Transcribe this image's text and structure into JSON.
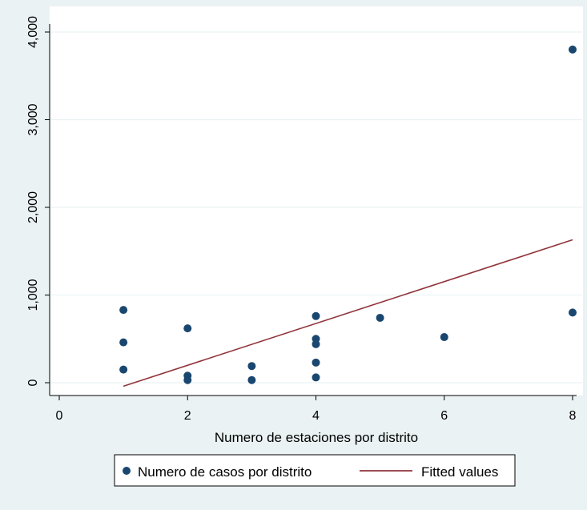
{
  "chart_data": {
    "type": "scatter",
    "xlabel": "Numero de estaciones por distrito",
    "ylabel": "",
    "xlim": [
      0,
      8
    ],
    "ylim": [
      0,
      4000
    ],
    "x_ticks": [
      0,
      2,
      4,
      6,
      8
    ],
    "x_tick_labels": [
      "0",
      "2",
      "4",
      "6",
      "8"
    ],
    "y_ticks": [
      0,
      1000,
      2000,
      3000,
      4000
    ],
    "y_tick_labels": [
      "0",
      "1,000",
      "2,000",
      "3,000",
      "4,000"
    ],
    "grid": true,
    "legend_position": "bottom",
    "series": [
      {
        "name": "Numero de casos por distrito",
        "kind": "scatter",
        "color": "#1a476f",
        "points": [
          {
            "x": 1,
            "y": 830
          },
          {
            "x": 1,
            "y": 460
          },
          {
            "x": 1,
            "y": 150
          },
          {
            "x": 2,
            "y": 620
          },
          {
            "x": 2,
            "y": 80
          },
          {
            "x": 2,
            "y": 30
          },
          {
            "x": 3,
            "y": 190
          },
          {
            "x": 3,
            "y": 30
          },
          {
            "x": 4,
            "y": 760
          },
          {
            "x": 4,
            "y": 500
          },
          {
            "x": 4,
            "y": 440
          },
          {
            "x": 4,
            "y": 230
          },
          {
            "x": 4,
            "y": 60
          },
          {
            "x": 5,
            "y": 740
          },
          {
            "x": 6,
            "y": 520
          },
          {
            "x": 8,
            "y": 3800
          },
          {
            "x": 8,
            "y": 800
          }
        ]
      },
      {
        "name": "Fitted values",
        "kind": "line",
        "color": "#90353b",
        "points": [
          {
            "x": 1,
            "y": -40
          },
          {
            "x": 8,
            "y": 1630
          }
        ]
      }
    ]
  }
}
